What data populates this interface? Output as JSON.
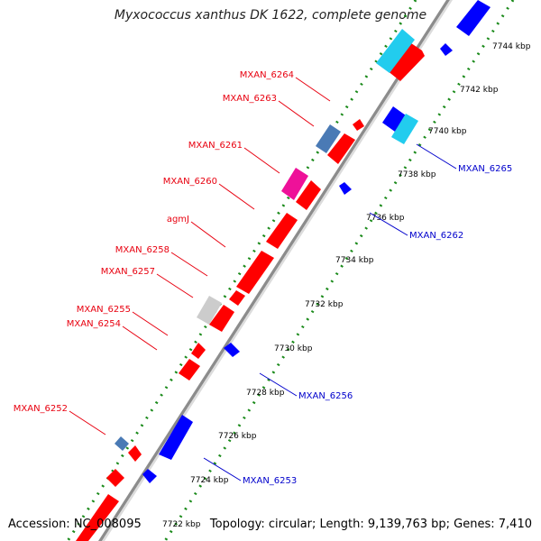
{
  "title": "Myxococcus xanthus DK 1622, complete genome",
  "footer": {
    "accession": "Accession: NC_008095",
    "summary": "Topology: circular; Length: 9,139,763 bp; Genes: 7,410"
  },
  "colors": {
    "forward_label": "#e8000f",
    "reverse_label": "#0000cc",
    "tick": "#1a8a1a",
    "gene_red": "#ff0000",
    "gene_blue": "#0000ff",
    "gene_steel": "#4a7ab5",
    "gene_magenta": "#ee1199",
    "gene_cyan": "#22ccee",
    "gene_gray": "#cccccc"
  },
  "scale_labels": [
    "7722 kbp",
    "7724 kbp",
    "7726 kbp",
    "7728 kbp",
    "7730 kbp",
    "7732 kbp",
    "7734 kbp",
    "7736 kbp",
    "7738 kbp",
    "7740 kbp",
    "7742 kbp",
    "7744 kbp"
  ],
  "forward_gene_labels": [
    "MXAN_6264",
    "MXAN_6263",
    "MXAN_6261",
    "MXAN_6260",
    "agmJ",
    "MXAN_6258",
    "MXAN_6257",
    "MXAN_6255",
    "MXAN_6254",
    "MXAN_6252"
  ],
  "reverse_gene_labels": [
    "MXAN_6265",
    "MXAN_6262",
    "MXAN_6256",
    "MXAN_6253"
  ]
}
